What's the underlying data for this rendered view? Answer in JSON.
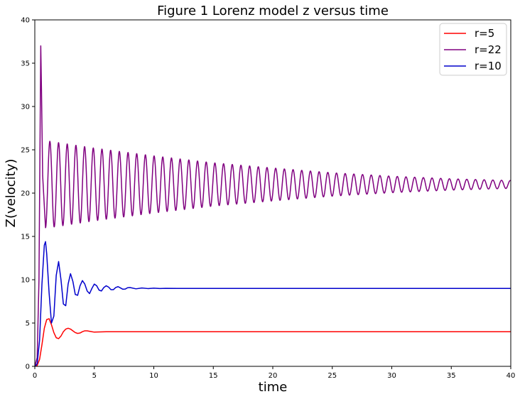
{
  "chart_data": {
    "type": "line",
    "title": "Figure 1 Lorenz model  z versus time",
    "xlabel": "time",
    "ylabel": "Z(velocity)",
    "xlim": [
      0,
      40
    ],
    "ylim": [
      0,
      40
    ],
    "xticks": [
      0,
      5,
      10,
      15,
      20,
      25,
      30,
      35,
      40
    ],
    "yticks": [
      0,
      5,
      10,
      15,
      20,
      25,
      30,
      35,
      40
    ],
    "grid": false,
    "legend_position": "top-right",
    "series": [
      {
        "name": "r=5",
        "color": "#ff0000",
        "x": [
          0,
          0.2,
          0.4,
          0.6,
          0.8,
          1.0,
          1.2,
          1.4,
          1.6,
          1.8,
          2.0,
          2.2,
          2.4,
          2.6,
          2.8,
          3.0,
          3.2,
          3.4,
          3.6,
          3.8,
          4.0,
          4.2,
          4.4,
          4.6,
          4.8,
          5.0,
          5.5,
          6.0,
          6.5,
          7.0,
          8.0,
          10,
          15,
          20,
          30,
          40
        ],
        "y": [
          0,
          0.1,
          0.8,
          2.5,
          4.4,
          5.4,
          5.5,
          4.8,
          3.9,
          3.3,
          3.2,
          3.5,
          4.0,
          4.3,
          4.4,
          4.3,
          4.1,
          3.9,
          3.8,
          3.85,
          4.0,
          4.1,
          4.1,
          4.05,
          4.0,
          3.95,
          3.98,
          4.0,
          4.0,
          4.0,
          4.0,
          4.0,
          4.0,
          4.0,
          4.0,
          4.0
        ]
      },
      {
        "name": "r=22",
        "color": "#800080",
        "kind": "damped-oscillation",
        "start_value": 0,
        "first_peak": {
          "x": 0.5,
          "y": 37
        },
        "equilibrium": 21,
        "period": 0.73,
        "envelope": {
          "t": [
            1.2,
            5,
            10,
            15,
            20,
            25,
            30,
            35,
            40
          ],
          "amplitude": [
            5.0,
            4.2,
            3.3,
            2.5,
            1.9,
            1.35,
            0.95,
            0.65,
            0.45
          ]
        },
        "x_end": 40
      },
      {
        "name": "r=10",
        "color": "#0000cc",
        "x": [
          0,
          0.2,
          0.4,
          0.6,
          0.8,
          0.9,
          1.0,
          1.2,
          1.4,
          1.6,
          1.8,
          2.0,
          2.2,
          2.4,
          2.6,
          2.8,
          3.0,
          3.2,
          3.4,
          3.6,
          3.8,
          4.0,
          4.2,
          4.4,
          4.6,
          4.8,
          5.0,
          5.2,
          5.4,
          5.6,
          5.8,
          6.0,
          6.2,
          6.4,
          6.6,
          6.8,
          7.0,
          7.2,
          7.4,
          7.6,
          7.8,
          8.0,
          8.5,
          9.0,
          9.5,
          10.0,
          10.5,
          11.0,
          12.0,
          14.0,
          20,
          30,
          40
        ],
        "y": [
          0,
          0.3,
          3.0,
          9.5,
          14.0,
          14.4,
          13.0,
          8.5,
          5.0,
          5.8,
          10.5,
          12.1,
          10.0,
          7.2,
          7.0,
          9.5,
          10.7,
          9.8,
          8.3,
          8.2,
          9.3,
          9.9,
          9.5,
          8.7,
          8.4,
          9.0,
          9.5,
          9.3,
          8.8,
          8.7,
          9.1,
          9.3,
          9.15,
          8.85,
          8.85,
          9.1,
          9.2,
          9.05,
          8.9,
          8.92,
          9.08,
          9.1,
          8.95,
          9.05,
          8.98,
          9.03,
          8.99,
          9.01,
          9.0,
          9.0,
          9.0,
          9.0,
          9.0
        ]
      }
    ]
  }
}
